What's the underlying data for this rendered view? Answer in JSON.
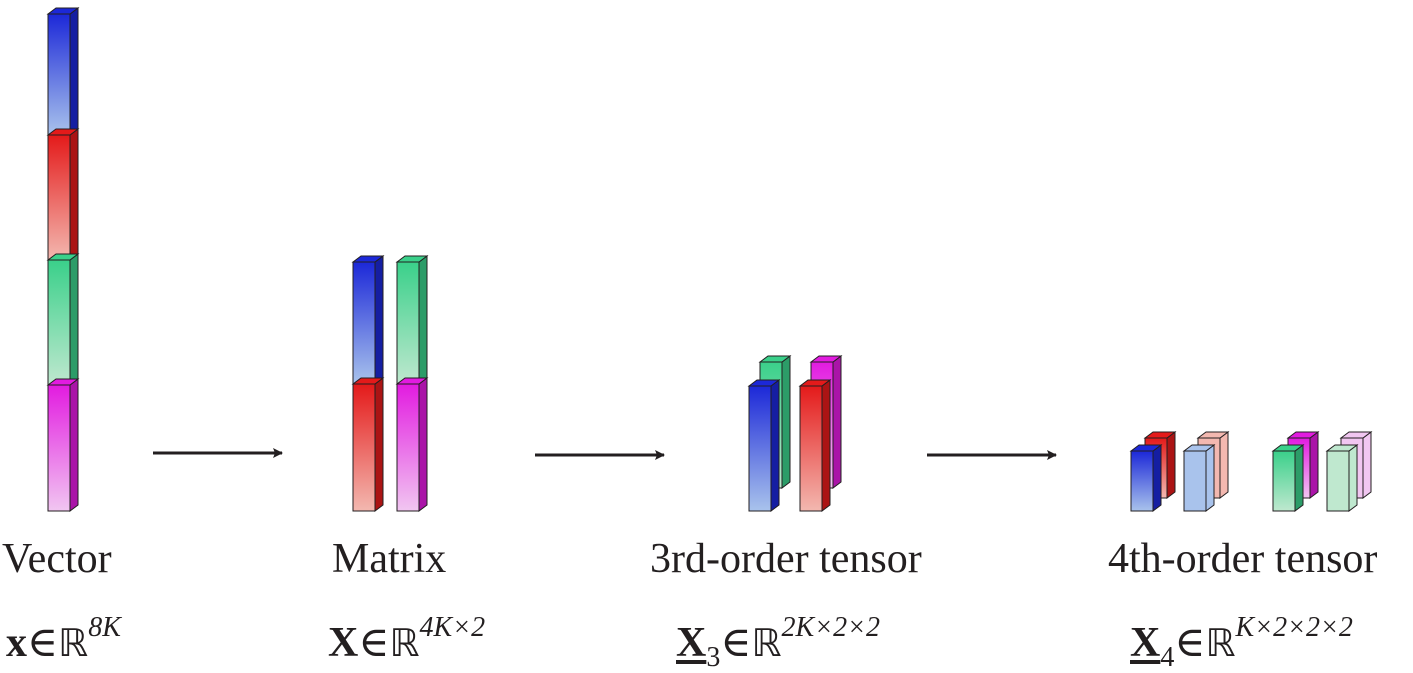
{
  "stages": [
    {
      "label": "Vector",
      "symbol": "x",
      "subscript": "",
      "underline": false,
      "member": "∈",
      "set": "ℝ",
      "exponent": "8K"
    },
    {
      "label": "Matrix",
      "symbol": "X",
      "subscript": "",
      "underline": false,
      "member": "∈",
      "set": "ℝ",
      "exponent": "4K×2"
    },
    {
      "label": "3rd-order tensor",
      "symbol": "X",
      "subscript": "3",
      "underline": true,
      "member": "∈",
      "set": "ℝ",
      "exponent": "2K×2×2"
    },
    {
      "label": "4th-order tensor",
      "symbol": "X",
      "subscript": "4",
      "underline": true,
      "member": "∈",
      "set": "ℝ",
      "exponent": "K×2×2×2"
    }
  ],
  "colors": {
    "blue": [
      "#1c28d8",
      "#a9c3ec"
    ],
    "red": [
      "#e41a1a",
      "#f3b8b0"
    ],
    "green": [
      "#3ad08a",
      "#bfe8cf"
    ],
    "magenta": [
      "#e21be0",
      "#f1c6f1"
    ],
    "edge": "#231f20"
  }
}
